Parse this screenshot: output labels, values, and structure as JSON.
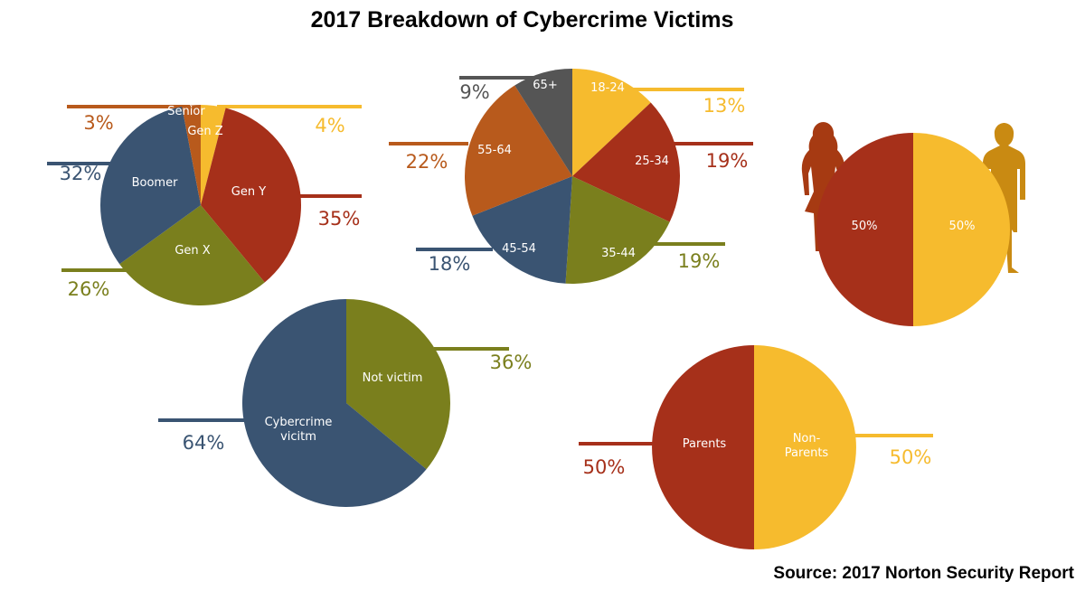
{
  "title": "2017 Breakdown of Cybercrime Victims",
  "source": "Source: 2017 Norton Security Report",
  "colors": {
    "red": "#A6301A",
    "yellow": "#F6BB2E",
    "blue": "#3A5472",
    "olive": "#7A7F1D",
    "orange": "#B85A1C",
    "gray": "#555555"
  },
  "chart_data": [
    {
      "type": "pie",
      "title": "",
      "slices": [
        {
          "label": "Gen Z",
          "value": 4,
          "value_label": "4%",
          "color": "#F6BB2E"
        },
        {
          "label": "Gen Y",
          "value": 35,
          "value_label": "35%",
          "color": "#A6301A"
        },
        {
          "label": "Gen X",
          "value": 26,
          "value_label": "26%",
          "color": "#7A7F1D"
        },
        {
          "label": "Boomer",
          "value": 32,
          "value_label": "32%",
          "color": "#3A5472"
        },
        {
          "label": "Senior",
          "value": 3,
          "value_label": "3%",
          "color": "#B85A1C"
        }
      ]
    },
    {
      "type": "pie",
      "title": "",
      "slices": [
        {
          "label": "18-24",
          "value": 13,
          "value_label": "13%",
          "color": "#F6BB2E"
        },
        {
          "label": "25-34",
          "value": 19,
          "value_label": "19%",
          "color": "#A6301A"
        },
        {
          "label": "35-44",
          "value": 19,
          "value_label": "19%",
          "color": "#7A7F1D"
        },
        {
          "label": "45-54",
          "value": 18,
          "value_label": "18%",
          "color": "#3A5472"
        },
        {
          "label": "55-64",
          "value": 22,
          "value_label": "22%",
          "color": "#B85A1C"
        },
        {
          "label": "65+",
          "value": 9,
          "value_label": "9%",
          "color": "#555555"
        }
      ]
    },
    {
      "type": "pie",
      "title": "",
      "slices": [
        {
          "label": "50%",
          "value": 50,
          "value_label": "",
          "color": "#F6BB2E"
        },
        {
          "label": "50%",
          "value": 50,
          "value_label": "",
          "color": "#A6301A"
        }
      ]
    },
    {
      "type": "pie",
      "title": "",
      "slices": [
        {
          "label": "Not victim",
          "value": 36,
          "value_label": "36%",
          "color": "#7A7F1D"
        },
        {
          "label": "Cybercrime vicitm",
          "value": 64,
          "value_label": "64%",
          "color": "#3A5472"
        }
      ]
    },
    {
      "type": "pie",
      "title": "",
      "slices": [
        {
          "label": "Non-Parents",
          "value": 50,
          "value_label": "50%",
          "color": "#F6BB2E"
        },
        {
          "label": "Parents",
          "value": 50,
          "value_label": "50%",
          "color": "#A6301A"
        }
      ]
    }
  ]
}
